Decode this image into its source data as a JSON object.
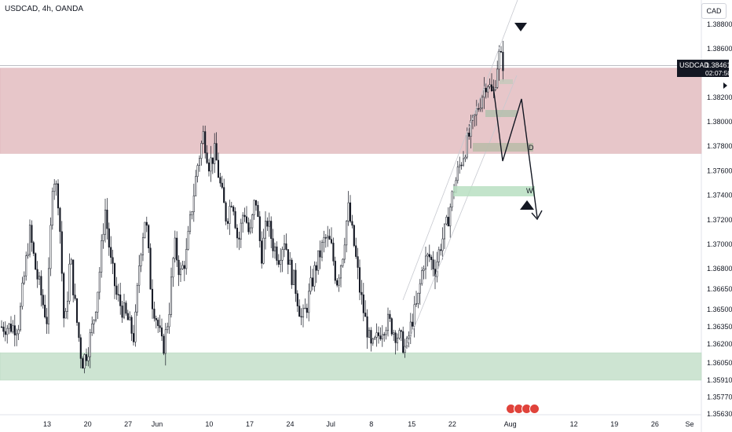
{
  "header": {
    "title": "USDCAD, 4h, OANDA"
  },
  "price_scale": {
    "currency": "CAD"
  },
  "last_price": {
    "symbol": "USDCAD",
    "value": "1.38461",
    "countdown": "02:07:50"
  },
  "pattern_labels": {
    "d": "D",
    "w": "W"
  },
  "colors": {
    "resistance_zone": "#e7c6c9",
    "support_zone": "#cde4d2",
    "candle": "#131722",
    "grid_text": "#131722"
  },
  "chart_data": {
    "type": "candlestick",
    "title": "USDCAD, 4h, OANDA",
    "ylim": [
      1.3556,
      1.389
    ],
    "y_ticks": [
      "1.38800",
      "1.38600",
      "1.38200",
      "1.38000",
      "1.37800",
      "1.37600",
      "1.37400",
      "1.37200",
      "1.37000",
      "1.36800",
      "1.36650",
      "1.36500",
      "1.36350",
      "1.36200",
      "1.36050",
      "1.35910",
      "1.35770",
      "1.35630"
    ],
    "x_ticks": [
      "13",
      "20",
      "27",
      "Jun",
      "10",
      "17",
      "24",
      "Jul",
      "8",
      "15",
      "22",
      "Aug",
      "12",
      "19",
      "26",
      "Se"
    ],
    "resistance_zone": [
      1.3774,
      1.3844
    ],
    "support_zone": [
      1.3591,
      1.3613
    ],
    "last_price": 1.38461,
    "swing_path": [
      {
        "date": "May 8",
        "close": 1.3635
      },
      {
        "date": "May 10",
        "close": 1.371
      },
      {
        "date": "May 11",
        "close": 1.368
      },
      {
        "date": "May 13",
        "close": 1.364
      },
      {
        "date": "May 14",
        "close": 1.376
      },
      {
        "date": "May 15",
        "close": 1.3735
      },
      {
        "date": "May 16",
        "close": 1.363
      },
      {
        "date": "May 17",
        "close": 1.369
      },
      {
        "date": "May 18",
        "close": 1.3645
      },
      {
        "date": "May 19",
        "close": 1.3605
      },
      {
        "date": "May 20",
        "close": 1.3615
      },
      {
        "date": "May 21",
        "close": 1.364
      },
      {
        "date": "May 22",
        "close": 1.3675
      },
      {
        "date": "May 23",
        "close": 1.373
      },
      {
        "date": "May 24",
        "close": 1.3685
      },
      {
        "date": "May 25",
        "close": 1.366
      },
      {
        "date": "May 27",
        "close": 1.364
      },
      {
        "date": "May 28",
        "close": 1.3625
      },
      {
        "date": "May 29",
        "close": 1.369
      },
      {
        "date": "May 30",
        "close": 1.3725
      },
      {
        "date": "May 31",
        "close": 1.366
      },
      {
        "date": "Jun 1",
        "close": 1.364
      },
      {
        "date": "Jun 2",
        "close": 1.3615
      },
      {
        "date": "Jun 3",
        "close": 1.3645
      },
      {
        "date": "Jun 4",
        "close": 1.37
      },
      {
        "date": "Jun 5",
        "close": 1.3675
      },
      {
        "date": "Jun 6",
        "close": 1.369
      },
      {
        "date": "Jun 7",
        "close": 1.373
      },
      {
        "date": "Jun 8",
        "close": 1.3765
      },
      {
        "date": "Jun 9",
        "close": 1.379
      },
      {
        "date": "Jun 10",
        "close": 1.3765
      },
      {
        "date": "Jun 11",
        "close": 1.3775
      },
      {
        "date": "Jun 12",
        "close": 1.3745
      },
      {
        "date": "Jun 13",
        "close": 1.372
      },
      {
        "date": "Jun 14",
        "close": 1.374
      },
      {
        "date": "Jun 15",
        "close": 1.37
      },
      {
        "date": "Jun 16",
        "close": 1.373
      },
      {
        "date": "Jun 17",
        "close": 1.3705
      },
      {
        "date": "Jun 18",
        "close": 1.374
      },
      {
        "date": "Jun 19",
        "close": 1.369
      },
      {
        "date": "Jun 20",
        "close": 1.372
      },
      {
        "date": "Jun 21",
        "close": 1.37
      },
      {
        "date": "Jun 22",
        "close": 1.369
      },
      {
        "date": "Jun 23",
        "close": 1.3705
      },
      {
        "date": "Jun 24",
        "close": 1.368
      },
      {
        "date": "Jun 25",
        "close": 1.3665
      },
      {
        "date": "Jun 26",
        "close": 1.364
      },
      {
        "date": "Jun 27",
        "close": 1.3655
      },
      {
        "date": "Jun 28",
        "close": 1.3675
      },
      {
        "date": "Jun 29",
        "close": 1.369
      },
      {
        "date": "Jun 30",
        "close": 1.3705
      },
      {
        "date": "Jul 1",
        "close": 1.37
      },
      {
        "date": "Jul 2",
        "close": 1.367
      },
      {
        "date": "Jul 3",
        "close": 1.369
      },
      {
        "date": "Jul 4",
        "close": 1.373
      },
      {
        "date": "Jul 5",
        "close": 1.37
      },
      {
        "date": "Jul 6",
        "close": 1.3665
      },
      {
        "date": "Jul 7",
        "close": 1.364
      },
      {
        "date": "Jul 8",
        "close": 1.3615
      },
      {
        "date": "Jul 9",
        "close": 1.3625
      },
      {
        "date": "Jul 10",
        "close": 1.3635
      },
      {
        "date": "Jul 11",
        "close": 1.364
      },
      {
        "date": "Jul 12",
        "close": 1.363
      },
      {
        "date": "Jul 13",
        "close": 1.3625
      },
      {
        "date": "Jul 14",
        "close": 1.3615
      },
      {
        "date": "Jul 15",
        "close": 1.364
      },
      {
        "date": "Jul 16",
        "close": 1.3655
      },
      {
        "date": "Jul 17",
        "close": 1.3685
      },
      {
        "date": "Jul 18",
        "close": 1.369
      },
      {
        "date": "Jul 19",
        "close": 1.368
      },
      {
        "date": "Jul 20",
        "close": 1.37
      },
      {
        "date": "Jul 21",
        "close": 1.3715
      },
      {
        "date": "Jul 22",
        "close": 1.374
      },
      {
        "date": "Jul 23",
        "close": 1.376
      },
      {
        "date": "Jul 24",
        "close": 1.3775
      },
      {
        "date": "Jul 25",
        "close": 1.379
      },
      {
        "date": "Jul 26",
        "close": 1.3805
      },
      {
        "date": "Jul 27",
        "close": 1.382
      },
      {
        "date": "Jul 28",
        "close": 1.3835
      },
      {
        "date": "Jul 29",
        "close": 1.382
      },
      {
        "date": "Jul 30",
        "close": 1.3855
      },
      {
        "date": "Jul 31",
        "close": 1.3846
      }
    ]
  }
}
